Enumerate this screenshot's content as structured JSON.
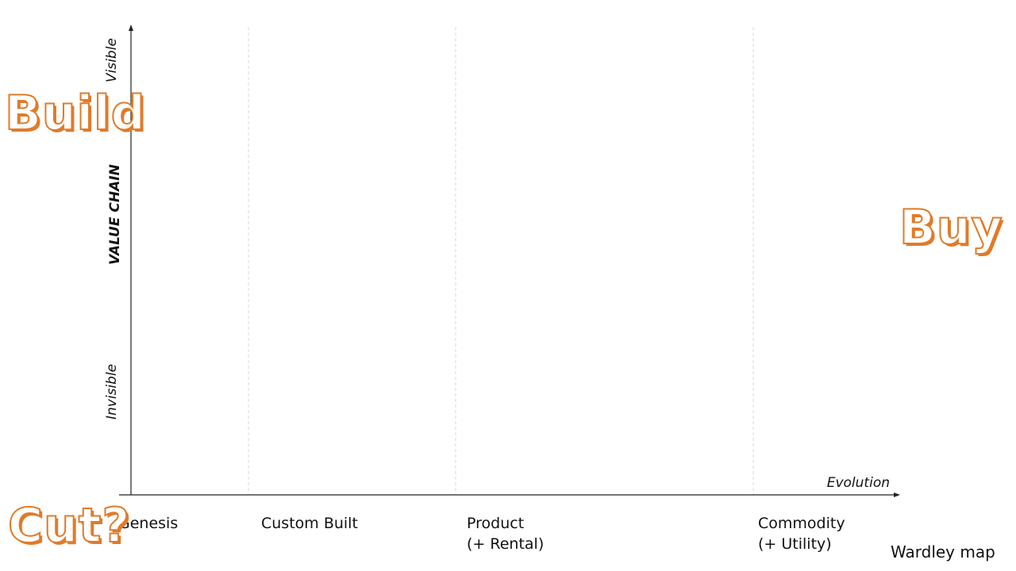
{
  "map": {
    "y_axis": {
      "title": "VALUE CHAIN",
      "top_label": "Visible",
      "bottom_label": "Invisible"
    },
    "x_axis": {
      "title": "Evolution",
      "stages": [
        {
          "label": "Genesis",
          "sub": ""
        },
        {
          "label": "Custom Built",
          "sub": ""
        },
        {
          "label": "Product",
          "sub": "(+ Rental)"
        },
        {
          "label": "Commodity",
          "sub": "(+ Utility)"
        }
      ]
    },
    "annotations": {
      "build": "Build",
      "buy": "Buy",
      "cut": "Cut?"
    },
    "footer": "Wardley map",
    "colors": {
      "accent": "#e07b2a",
      "axis": "#222222",
      "divider": "#d9d9d9"
    }
  }
}
